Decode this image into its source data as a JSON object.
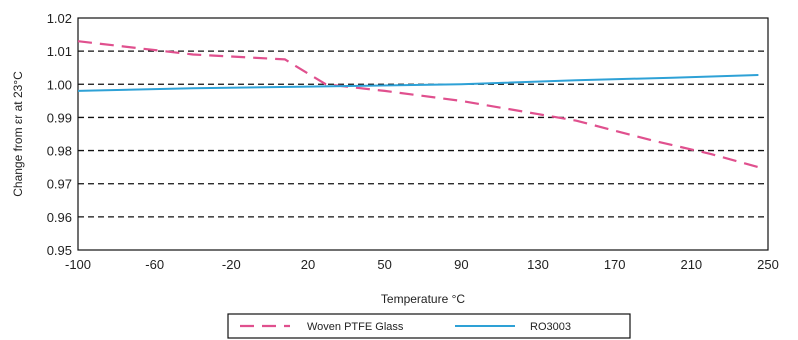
{
  "chart_data": {
    "type": "line",
    "xlabel": "Temperature °C",
    "ylabel": "Change from εr at 23°C",
    "xlim": [
      -100,
      250
    ],
    "ylim": [
      0.95,
      1.02
    ],
    "x_ticks": [
      "-100",
      "-60",
      "-20",
      "20",
      "50",
      "90",
      "130",
      "170",
      "210",
      "250"
    ],
    "y_ticks": [
      "0.95",
      "0.96",
      "0.97",
      "0.98",
      "0.99",
      "1.00",
      "1.01",
      "1.02"
    ],
    "grid": "horizontal dashed",
    "legend_position": "bottom",
    "series": [
      {
        "name": "Woven PTFE Glass",
        "style": "dashed",
        "color": "#e0508e",
        "points": [
          [
            -100,
            1.013
          ],
          [
            -40,
            1.009
          ],
          [
            8,
            1.0075
          ],
          [
            15,
            1.005
          ],
          [
            27,
            1.0
          ],
          [
            50,
            0.998
          ],
          [
            90,
            0.995
          ],
          [
            130,
            0.991
          ],
          [
            150,
            0.989
          ],
          [
            190,
            0.983
          ],
          [
            220,
            0.979
          ],
          [
            245,
            0.975
          ]
        ]
      },
      {
        "name": "RO3003",
        "style": "solid",
        "color": "#2ea1d6",
        "points": [
          [
            -100,
            0.998
          ],
          [
            -40,
            0.9988
          ],
          [
            20,
            0.9993
          ],
          [
            90,
            1.0
          ],
          [
            150,
            1.0012
          ],
          [
            200,
            1.002
          ],
          [
            245,
            1.0028
          ]
        ]
      }
    ]
  }
}
